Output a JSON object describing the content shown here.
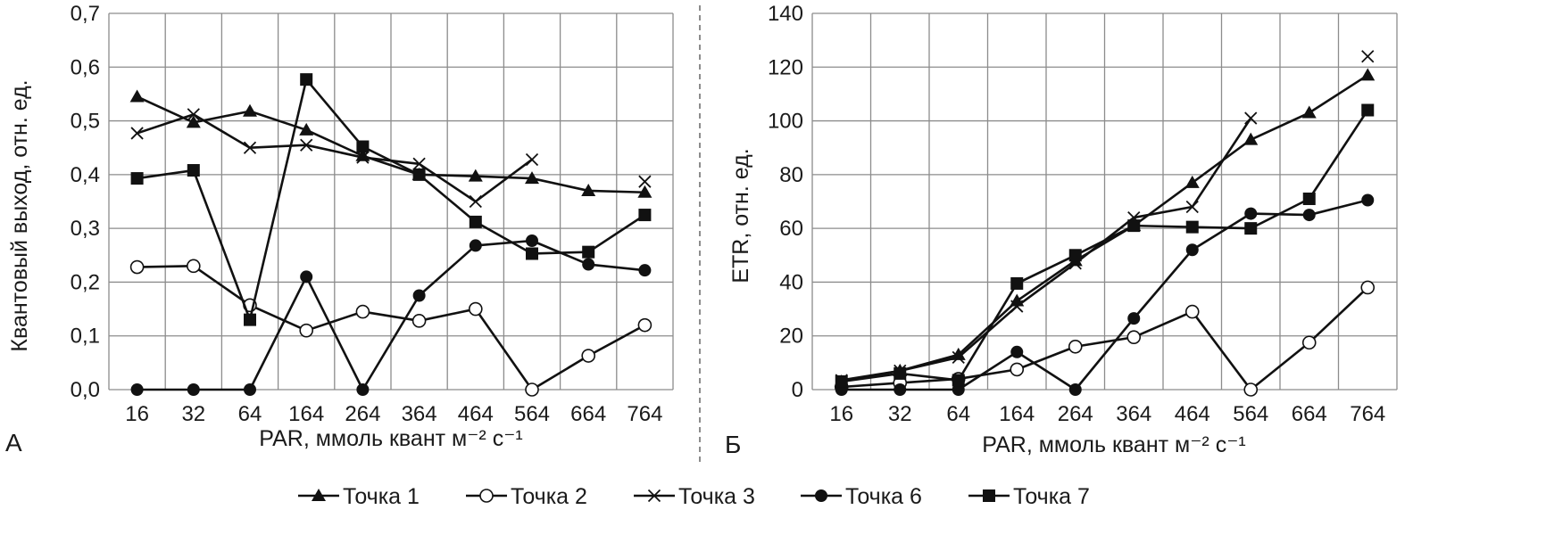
{
  "chart_data": [
    {
      "panel": "А",
      "type": "line",
      "categories": [
        "16",
        "32",
        "64",
        "164",
        "264",
        "364",
        "464",
        "564",
        "664",
        "764"
      ],
      "ylabel": "Квантовый выход, отн. ед.",
      "xlabel": "PAR, ммоль квант м⁻² с⁻¹",
      "ylim": [
        0,
        0.7
      ],
      "yticks": [
        0,
        0.1,
        0.2,
        0.3,
        0.4,
        0.5,
        0.6,
        0.7
      ],
      "ytick_labels": [
        "0,0",
        "0,1",
        "0,2",
        "0,3",
        "0,4",
        "0,5",
        "0,6",
        "0,7"
      ],
      "grid": true,
      "series": [
        {
          "name": "Точка 1",
          "marker": "triangle",
          "values": [
            0.545,
            0.497,
            0.518,
            0.483,
            0.435,
            0.4,
            0.397,
            0.393,
            0.37,
            0.367
          ]
        },
        {
          "name": "Точка 2",
          "marker": "circle-open",
          "values": [
            0.228,
            0.23,
            0.157,
            0.11,
            0.145,
            0.128,
            0.15,
            0.0,
            0.063,
            0.12
          ]
        },
        {
          "name": "Точка 3",
          "marker": "x",
          "values": [
            0.477,
            0.512,
            0.45,
            0.455,
            0.432,
            0.42,
            0.35,
            0.428,
            null,
            0.387
          ]
        },
        {
          "name": "Точка 6",
          "marker": "circle-filled",
          "values": [
            0.0,
            0.0,
            0.0,
            0.21,
            0.0,
            0.175,
            0.268,
            0.277,
            0.233,
            0.222
          ]
        },
        {
          "name": "Точка 7",
          "marker": "square",
          "values": [
            0.393,
            0.408,
            0.13,
            0.577,
            0.452,
            0.4,
            0.312,
            0.253,
            0.256,
            0.325
          ]
        }
      ]
    },
    {
      "panel": "Б",
      "type": "line",
      "categories": [
        "16",
        "32",
        "64",
        "164",
        "264",
        "364",
        "464",
        "564",
        "664",
        "764"
      ],
      "ylabel": "ETR, отн. ед.",
      "xlabel": "PAR, ммоль квант м⁻² с⁻¹",
      "ylim": [
        0,
        140
      ],
      "yticks": [
        0,
        20,
        40,
        60,
        80,
        100,
        120,
        140
      ],
      "ytick_labels": [
        "0",
        "20",
        "40",
        "60",
        "80",
        "100",
        "120",
        "140"
      ],
      "grid": true,
      "series": [
        {
          "name": "Точка 1",
          "marker": "triangle",
          "values": [
            3,
            7,
            13,
            33,
            48,
            61,
            77,
            93,
            103,
            117
          ]
        },
        {
          "name": "Точка 2",
          "marker": "circle-open",
          "values": [
            1,
            2.5,
            4,
            7.5,
            16,
            19.5,
            29,
            0,
            17.5,
            38
          ]
        },
        {
          "name": "Точка 3",
          "marker": "x",
          "values": [
            3.5,
            7,
            12,
            31,
            47,
            64,
            68,
            101,
            null,
            124
          ]
        },
        {
          "name": "Точка 6",
          "marker": "circle-filled",
          "values": [
            0,
            0,
            0,
            14,
            0,
            26.5,
            52,
            65.5,
            65,
            70.5
          ]
        },
        {
          "name": "Точка 7",
          "marker": "square",
          "values": [
            3,
            6,
            3.5,
            39.5,
            50,
            61,
            60.5,
            60,
            71,
            104
          ]
        }
      ]
    }
  ],
  "legend": {
    "items": [
      {
        "label": "Точка 1",
        "marker": "triangle"
      },
      {
        "label": "Точка 2",
        "marker": "circle-open"
      },
      {
        "label": "Точка 3",
        "marker": "x"
      },
      {
        "label": "Точка 6",
        "marker": "circle-filled"
      },
      {
        "label": "Точка 7",
        "marker": "square"
      }
    ]
  },
  "colors": {
    "line": "#111111",
    "grid": "#8c8c8c",
    "text": "#1a1a1a",
    "divider": "#666666"
  }
}
